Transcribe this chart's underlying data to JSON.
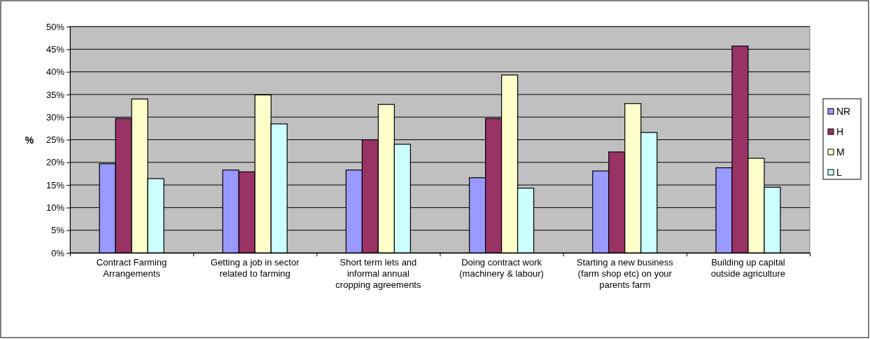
{
  "chart_data": {
    "type": "bar",
    "ylabel": "%",
    "categories": [
      "Contract Farming Arrangements",
      "Getting a job in sector related to farming",
      "Short term lets and informal annual cropping agreements",
      "Doing contract work (machinery & labour)",
      "Starting a new business (farm shop etc) on your parents farm",
      "Building up capital outside agriculture"
    ],
    "series": [
      {
        "name": "NR",
        "color": "#9999ff",
        "values": [
          19.7,
          18.3,
          18.3,
          16.6,
          18.1,
          18.8
        ]
      },
      {
        "name": "H",
        "color": "#993366",
        "values": [
          29.7,
          17.9,
          25.0,
          29.7,
          22.3,
          45.7
        ]
      },
      {
        "name": "M",
        "color": "#ffffcc",
        "values": [
          34.0,
          34.9,
          32.8,
          39.3,
          33.0,
          20.9
        ]
      },
      {
        "name": "L",
        "color": "#ccffff",
        "values": [
          16.4,
          28.5,
          24.0,
          14.3,
          26.6,
          14.5
        ]
      }
    ],
    "ylim": [
      0,
      50
    ],
    "yticks": [
      {
        "value": 0,
        "label": "0%"
      },
      {
        "value": 5,
        "label": "5%"
      },
      {
        "value": 10,
        "label": "10%"
      },
      {
        "value": 15,
        "label": "15%"
      },
      {
        "value": 20,
        "label": "20%"
      },
      {
        "value": 25,
        "label": "25%"
      },
      {
        "value": 30,
        "label": "30%"
      },
      {
        "value": 35,
        "label": "35%"
      },
      {
        "value": 40,
        "label": "40%"
      },
      {
        "value": 45,
        "label": "45%"
      },
      {
        "value": 50,
        "label": "50%"
      }
    ],
    "grid": "y",
    "legend": "right"
  }
}
